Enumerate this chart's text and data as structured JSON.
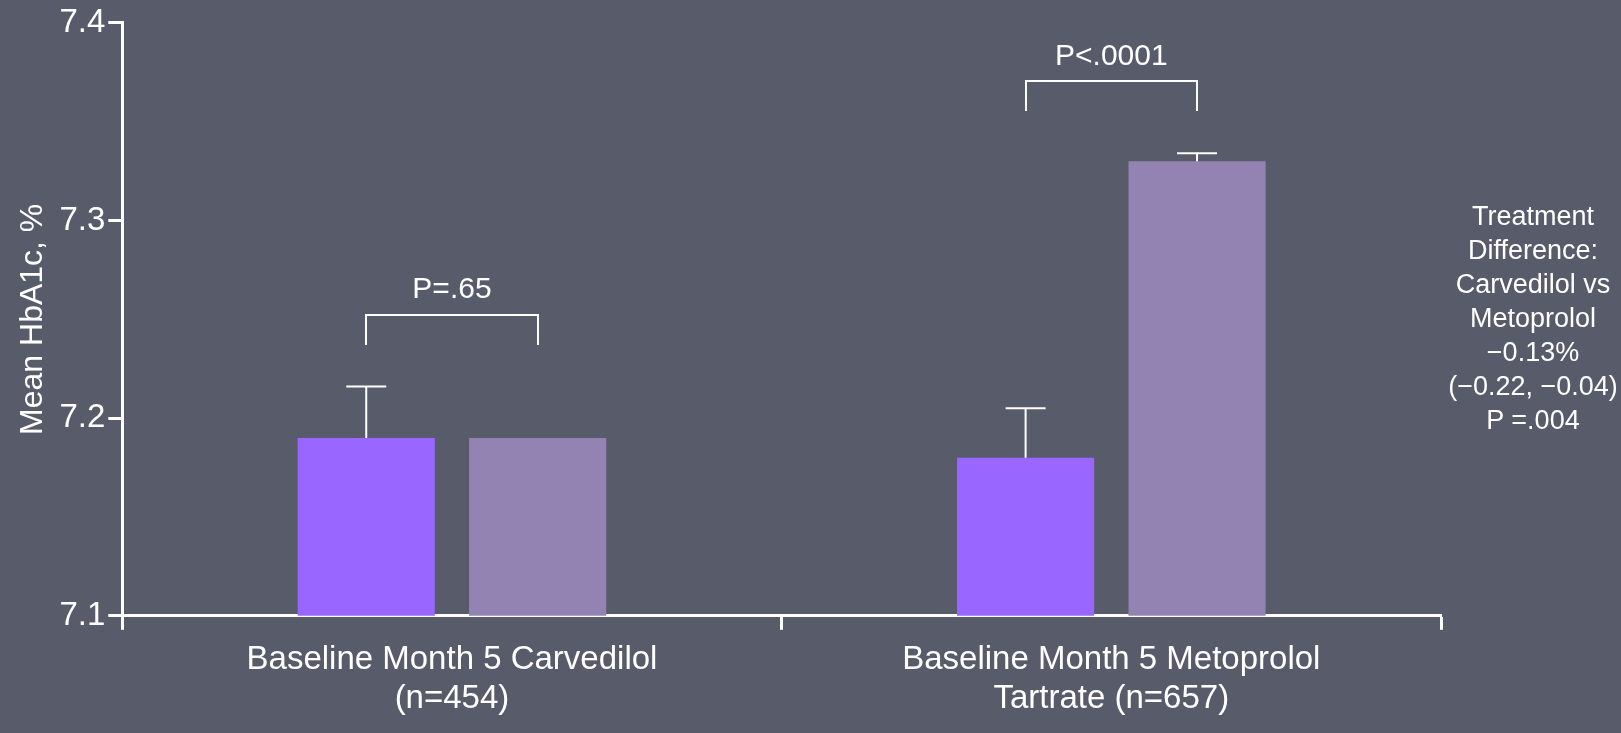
{
  "chart_data": {
    "type": "bar",
    "ylabel": "Mean HbA1c, %",
    "categories": [
      "Baseline Month 5 Carvedilol (n=454)",
      "Baseline Month 5 Metoprolol Tartrate (n=657)"
    ],
    "series": [
      {
        "color": "#9966ff",
        "values": [
          7.19,
          7.18
        ],
        "errors": [
          [
            7.19,
            7.216
          ],
          [
            7.18,
            7.205
          ]
        ]
      },
      {
        "color": "#9383b3",
        "values": [
          7.19,
          7.33
        ],
        "errors": [
          null,
          [
            7.33,
            7.334
          ]
        ]
      }
    ],
    "ylim": [
      7.1,
      7.4
    ],
    "yticks": [
      7.1,
      7.2,
      7.3,
      7.4
    ],
    "grid": false,
    "legend": false,
    "annotations": [
      "P=.65",
      "P<.0001",
      "Treatment\nDifference:\nCarvedilol vs\nMetoprolol\n−0.13%\n(−0.22, −0.04)\nP =.004"
    ]
  }
}
